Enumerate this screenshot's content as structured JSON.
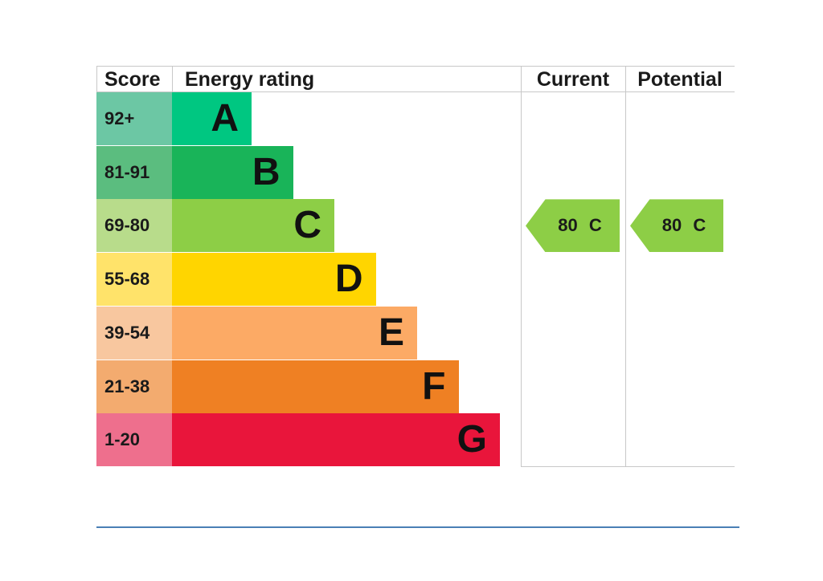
{
  "headers": {
    "score": "Score",
    "energy_rating": "Energy rating",
    "current": "Current",
    "potential": "Potential"
  },
  "chart_data": {
    "type": "bar",
    "categories": [
      "A",
      "B",
      "C",
      "D",
      "E",
      "F",
      "G"
    ],
    "score_ranges": [
      "92+",
      "81-91",
      "69-80",
      "55-68",
      "39-54",
      "21-38",
      "1-20"
    ],
    "band_colors": [
      "#00c781",
      "#19b459",
      "#8dce46",
      "#ffd500",
      "#fcaa65",
      "#ef8023",
      "#e9153b"
    ],
    "score_cell_colors": [
      "#6cc7a4",
      "#5bbd7f",
      "#b8dc8b",
      "#ffe36a",
      "#f8c79f",
      "#f3ab6f",
      "#ee6f8d"
    ],
    "current": {
      "value": 80,
      "band": "C",
      "label": "80  C"
    },
    "potential": {
      "value": 80,
      "band": "C",
      "label": "80  C"
    },
    "indicator_color": "#8dce46"
  }
}
